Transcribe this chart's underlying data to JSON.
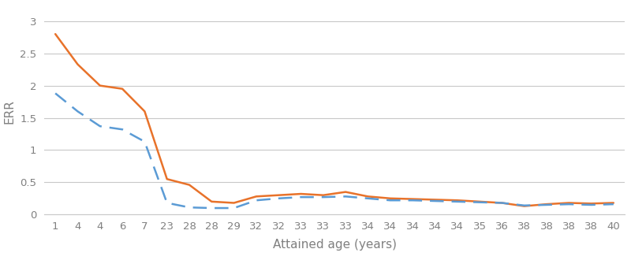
{
  "x_labels": [
    "1",
    "4",
    "4",
    "6",
    "7",
    "23",
    "28",
    "28",
    "29",
    "32",
    "32",
    "33",
    "33",
    "33",
    "34",
    "34",
    "34",
    "34",
    "34",
    "35",
    "36",
    "38",
    "38",
    "38",
    "38",
    "40"
  ],
  "orange_values": [
    2.8,
    2.33,
    2.0,
    1.95,
    1.6,
    0.55,
    0.46,
    0.2,
    0.18,
    0.28,
    0.3,
    0.32,
    0.3,
    0.35,
    0.28,
    0.25,
    0.24,
    0.23,
    0.22,
    0.2,
    0.18,
    0.13,
    0.16,
    0.18,
    0.17,
    0.18
  ],
  "blue_values": [
    1.88,
    1.6,
    1.37,
    1.32,
    1.13,
    0.18,
    0.11,
    0.1,
    0.1,
    0.22,
    0.25,
    0.27,
    0.27,
    0.28,
    0.25,
    0.22,
    0.22,
    0.21,
    0.2,
    0.19,
    0.18,
    0.14,
    0.15,
    0.16,
    0.15,
    0.16
  ],
  "orange_color": "#E8722A",
  "blue_color": "#5B9BD5",
  "ylabel": "ERR",
  "xlabel": "Attained age (years)",
  "ylim": [
    0,
    3.2
  ],
  "yticks": [
    0,
    0.5,
    1,
    1.5,
    2,
    2.5,
    3
  ],
  "background_color": "#FFFFFF",
  "grid_color": "#C8C8C8",
  "label_color": "#808080",
  "tick_color": "#808080",
  "ylabel_fontsize": 11,
  "xlabel_fontsize": 11,
  "tick_fontsize": 9.5
}
